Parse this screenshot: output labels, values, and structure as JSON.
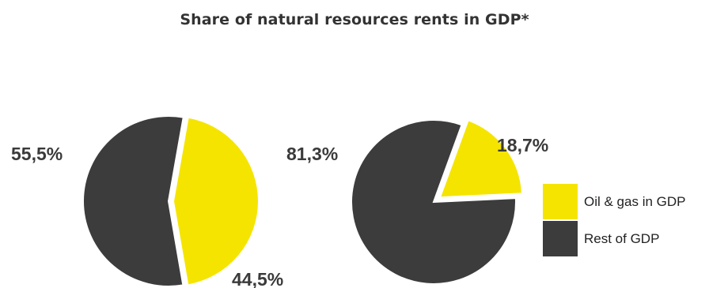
{
  "title": "Share of natural resources rents in GDP*",
  "colors": {
    "oil_gas": "#f5e400",
    "rest": "#3c3c3c"
  },
  "legend": [
    {
      "label": "Oil & gas in GDP",
      "color_key": "oil_gas"
    },
    {
      "label": "Rest of GDP",
      "color_key": "rest"
    }
  ],
  "chart_data": [
    {
      "type": "pie",
      "slices": [
        {
          "category": "Oil & gas in GDP",
          "value": 44.5,
          "label": "44,5%"
        },
        {
          "category": "Rest of GDP",
          "value": 55.5,
          "label": "55,5%"
        }
      ]
    },
    {
      "type": "pie",
      "slices": [
        {
          "category": "Oil & gas in GDP",
          "value": 18.7,
          "label": "18,7%"
        },
        {
          "category": "Rest of GDP",
          "value": 81.3,
          "label": "81,3%"
        }
      ]
    }
  ]
}
